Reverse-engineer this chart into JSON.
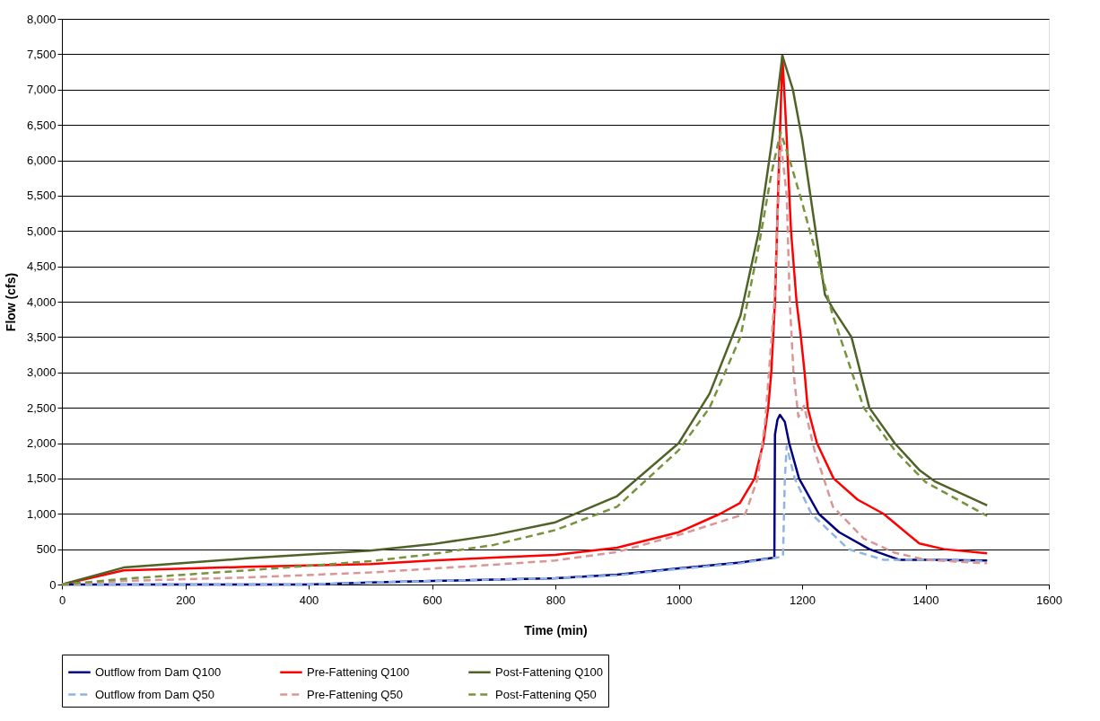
{
  "chart_data": {
    "type": "line",
    "xlabel": "Time (min)",
    "ylabel": "Flow (cfs)",
    "xlim": [
      0,
      1600
    ],
    "xticks": [
      0,
      200,
      400,
      600,
      800,
      1000,
      1200,
      1400,
      1600
    ],
    "ylim": [
      0,
      8000
    ],
    "yticks": [
      0,
      500,
      {
        "value": 1000,
        "label": "1,000"
      },
      {
        "value": 1500,
        "label": "1,500"
      },
      {
        "value": 2000,
        "label": "2,000"
      },
      {
        "value": 2500,
        "label": "2,500"
      },
      {
        "value": 3000,
        "label": "3,000"
      },
      {
        "value": 3500,
        "label": "3,500"
      },
      {
        "value": 4000,
        "label": "4,000"
      },
      {
        "value": 4500,
        "label": "4,500"
      },
      {
        "value": 5000,
        "label": "5,000"
      },
      {
        "value": 5500,
        "label": "5,500"
      },
      {
        "value": 6000,
        "label": "6,000"
      },
      {
        "value": 6500,
        "label": "6,500"
      },
      {
        "value": 7000,
        "label": "7,000"
      },
      {
        "value": 7500,
        "label": "7,500"
      },
      {
        "value": 8000,
        "label": "8,000"
      }
    ],
    "grid": "y",
    "legend": "bottom",
    "marker": "none",
    "series": [
      {
        "name": "Outflow from Dam Q100",
        "color": "#000080",
        "line_style": "solid",
        "x": [
          0,
          400,
          500,
          600,
          700,
          800,
          900,
          1000,
          1100,
          1155,
          1156,
          1160,
          1164,
          1172,
          1179,
          1195,
          1227,
          1260,
          1309,
          1357,
          1400,
          1500
        ],
        "values": [
          0,
          0,
          30,
          50,
          70,
          90,
          140,
          230,
          310,
          380,
          2120,
          2330,
          2400,
          2300,
          2000,
          1500,
          1000,
          740,
          500,
          350,
          350,
          340
        ]
      },
      {
        "name": "Pre-Fattening Q100",
        "color": "#ff0000",
        "line_style": "solid",
        "x": [
          0,
          100,
          300,
          500,
          600,
          700,
          800,
          900,
          1000,
          1067,
          1099,
          1123,
          1137,
          1145,
          1150,
          1156,
          1162,
          1168,
          1174,
          1182,
          1191,
          1198,
          1204,
          1209,
          1224,
          1251,
          1290,
          1332,
          1390,
          1430,
          1500
        ],
        "values": [
          0,
          200,
          250,
          290,
          340,
          380,
          420,
          520,
          740,
          1000,
          1150,
          1500,
          2000,
          2500,
          3000,
          4000,
          5800,
          7480,
          6500,
          5000,
          4000,
          3500,
          3000,
          2500,
          2000,
          1500,
          1200,
          1000,
          580,
          500,
          440
        ]
      },
      {
        "name": "Post-Fattening Q100",
        "color": "#4f6228",
        "line_style": "solid",
        "x": [
          0,
          100,
          300,
          500,
          600,
          700,
          800,
          900,
          1000,
          1050,
          1100,
          1130,
          1150,
          1168,
          1185,
          1200,
          1237,
          1250,
          1280,
          1309,
          1350,
          1390,
          1415,
          1500
        ],
        "values": [
          0,
          240,
          370,
          480,
          570,
          700,
          880,
          1250,
          2000,
          2700,
          3800,
          5000,
          6200,
          7480,
          7000,
          6300,
          4100,
          3900,
          3500,
          2500,
          2000,
          1620,
          1460,
          1120
        ]
      },
      {
        "name": "Outflow from Dam Q50",
        "color": "#8eb4e3",
        "line_style": "dashed",
        "x": [
          0,
          400,
          500,
          600,
          700,
          800,
          900,
          1000,
          1100,
          1165,
          1169,
          1172,
          1175,
          1188,
          1215,
          1275,
          1332,
          1400,
          1500
        ],
        "values": [
          0,
          0,
          30,
          50,
          70,
          90,
          130,
          220,
          300,
          390,
          400,
          1500,
          1960,
          1500,
          1000,
          500,
          350,
          350,
          330
        ]
      },
      {
        "name": "Pre-Fattening Q50",
        "color": "#d99694",
        "line_style": "dashed",
        "x": [
          0,
          100,
          300,
          500,
          700,
          800,
          900,
          1000,
          1108,
          1128,
          1140,
          1155,
          1165,
          1175,
          1180,
          1186,
          1194,
          1203,
          1220,
          1250,
          1300,
          1350,
          1400,
          1500
        ],
        "values": [
          0,
          50,
          100,
          170,
          280,
          340,
          460,
          700,
          1000,
          1500,
          2300,
          4000,
          6300,
          5500,
          4000,
          3000,
          2370,
          2530,
          1900,
          1100,
          650,
          450,
          350,
          300
        ]
      },
      {
        "name": "Post-Fattening Q50",
        "color": "#77933c",
        "line_style": "dashed",
        "x": [
          0,
          100,
          300,
          500,
          600,
          700,
          800,
          900,
          1000,
          1050,
          1100,
          1130,
          1150,
          1165,
          1180,
          1200,
          1250,
          1300,
          1350,
          1400,
          1500
        ],
        "values": [
          0,
          80,
          200,
          330,
          430,
          560,
          770,
          1100,
          1900,
          2500,
          3500,
          4800,
          5800,
          6400,
          6000,
          5400,
          3800,
          2500,
          1900,
          1450,
          970
        ]
      }
    ]
  }
}
